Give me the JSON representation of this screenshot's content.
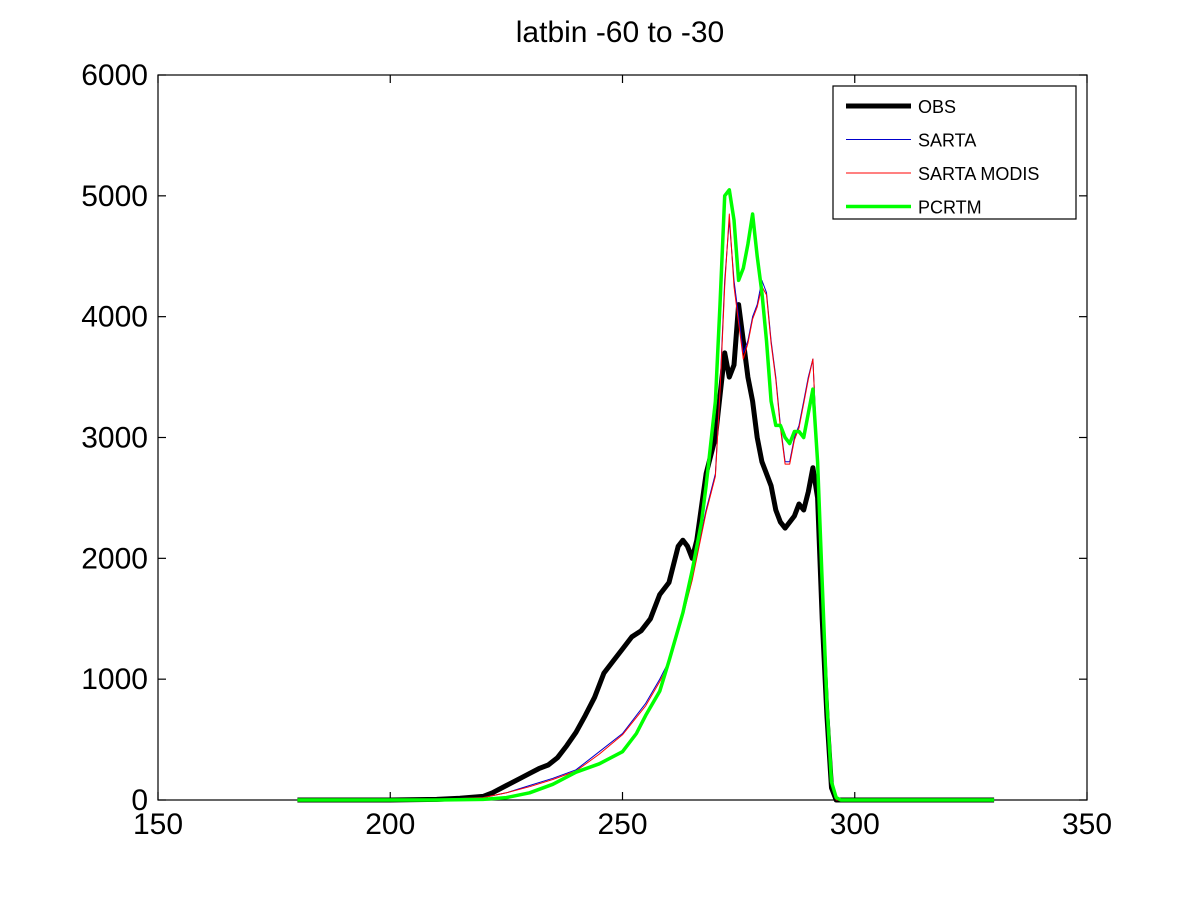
{
  "chart_data": {
    "type": "line",
    "title": "latbin -60  to -30",
    "xlabel": "",
    "ylabel": "",
    "xlim": [
      150,
      350
    ],
    "ylim": [
      0,
      6000
    ],
    "x_ticks": [
      "150",
      "200",
      "250",
      "300",
      "350"
    ],
    "y_ticks": [
      "0",
      "1000",
      "2000",
      "3000",
      "4000",
      "5000",
      "6000"
    ],
    "grid": false,
    "legend_position": "top-right",
    "series": [
      {
        "name": "OBS",
        "color": "#000000",
        "x": [
          180,
          200,
          210,
          215,
          220,
          222,
          225,
          228,
          230,
          232,
          234,
          236,
          238,
          240,
          242,
          244,
          246,
          248,
          250,
          252,
          254,
          256,
          258,
          260,
          262,
          263,
          264,
          265,
          266,
          268,
          270,
          272,
          273,
          274,
          275,
          276,
          277,
          278,
          279,
          280,
          282,
          283,
          284,
          285,
          286,
          287,
          288,
          289,
          290,
          291,
          292,
          293,
          294,
          295,
          296,
          297,
          300,
          310,
          320,
          330
        ],
        "y": [
          0,
          0,
          5,
          15,
          30,
          60,
          120,
          180,
          220,
          260,
          290,
          350,
          450,
          560,
          700,
          850,
          1050,
          1150,
          1250,
          1350,
          1400,
          1500,
          1700,
          1800,
          2100,
          2150,
          2100,
          2000,
          2150,
          2700,
          3000,
          3700,
          3500,
          3600,
          4100,
          3800,
          3500,
          3300,
          3000,
          2800,
          2600,
          2400,
          2300,
          2250,
          2300,
          2350,
          2450,
          2400,
          2550,
          2750,
          2500,
          1500,
          700,
          100,
          0,
          0,
          0,
          0,
          0,
          0
        ]
      },
      {
        "name": "SARTA",
        "color": "#0000cc",
        "x": [
          180,
          200,
          210,
          220,
          225,
          230,
          235,
          240,
          245,
          250,
          255,
          258,
          260,
          263,
          265,
          268,
          270,
          271,
          272,
          273,
          274,
          275,
          276,
          277,
          278,
          279,
          280,
          281,
          282,
          283,
          284,
          285,
          286,
          287,
          288,
          289,
          290,
          291,
          292,
          293,
          294,
          295,
          296,
          297,
          300,
          310,
          320,
          330
        ],
        "y": [
          0,
          0,
          5,
          20,
          60,
          120,
          180,
          250,
          400,
          550,
          800,
          1000,
          1150,
          1550,
          1850,
          2400,
          2700,
          3400,
          4300,
          4800,
          4300,
          4000,
          3700,
          3800,
          4000,
          4100,
          4300,
          4200,
          3800,
          3500,
          3100,
          2800,
          2800,
          3000,
          3100,
          3300,
          3500,
          3650,
          2800,
          1800,
          800,
          150,
          0,
          0,
          0,
          0,
          0,
          0
        ]
      },
      {
        "name": "SARTA MODIS",
        "color": "#ff0000",
        "x": [
          180,
          200,
          210,
          220,
          225,
          230,
          235,
          240,
          245,
          250,
          255,
          258,
          260,
          263,
          265,
          268,
          270,
          271,
          272,
          273,
          274,
          275,
          276,
          277,
          278,
          279,
          280,
          281,
          282,
          283,
          284,
          285,
          286,
          287,
          288,
          289,
          290,
          291,
          292,
          293,
          294,
          295,
          296,
          297,
          300,
          310,
          320,
          330
        ],
        "y": [
          0,
          0,
          5,
          20,
          60,
          110,
          170,
          240,
          380,
          540,
          780,
          980,
          1130,
          1520,
          1820,
          2380,
          2680,
          3380,
          4250,
          4850,
          4250,
          3950,
          3650,
          3780,
          3980,
          4080,
          4250,
          4180,
          3780,
          3480,
          3080,
          2780,
          2780,
          2980,
          3080,
          3280,
          3480,
          3650,
          2780,
          1780,
          780,
          150,
          0,
          0,
          0,
          0,
          0,
          0
        ]
      },
      {
        "name": "PCRTM",
        "color": "#00ff00",
        "x": [
          180,
          200,
          210,
          220,
          225,
          230,
          235,
          240,
          245,
          250,
          253,
          255,
          258,
          260,
          263,
          265,
          267,
          268,
          270,
          271,
          272,
          273,
          274,
          275,
          276,
          277,
          278,
          279,
          280,
          281,
          282,
          283,
          284,
          285,
          286,
          287,
          288,
          289,
          290,
          291,
          292,
          293,
          294,
          295,
          296,
          297,
          300,
          310,
          320,
          330
        ],
        "y": [
          0,
          0,
          0,
          5,
          20,
          60,
          130,
          230,
          300,
          400,
          550,
          700,
          900,
          1150,
          1550,
          1900,
          2300,
          2600,
          3300,
          4100,
          5000,
          5050,
          4800,
          4300,
          4400,
          4600,
          4850,
          4500,
          4200,
          3800,
          3300,
          3100,
          3100,
          3000,
          2950,
          3050,
          3050,
          3000,
          3200,
          3400,
          2800,
          1800,
          800,
          150,
          20,
          0,
          0,
          0,
          0,
          0
        ]
      }
    ]
  }
}
